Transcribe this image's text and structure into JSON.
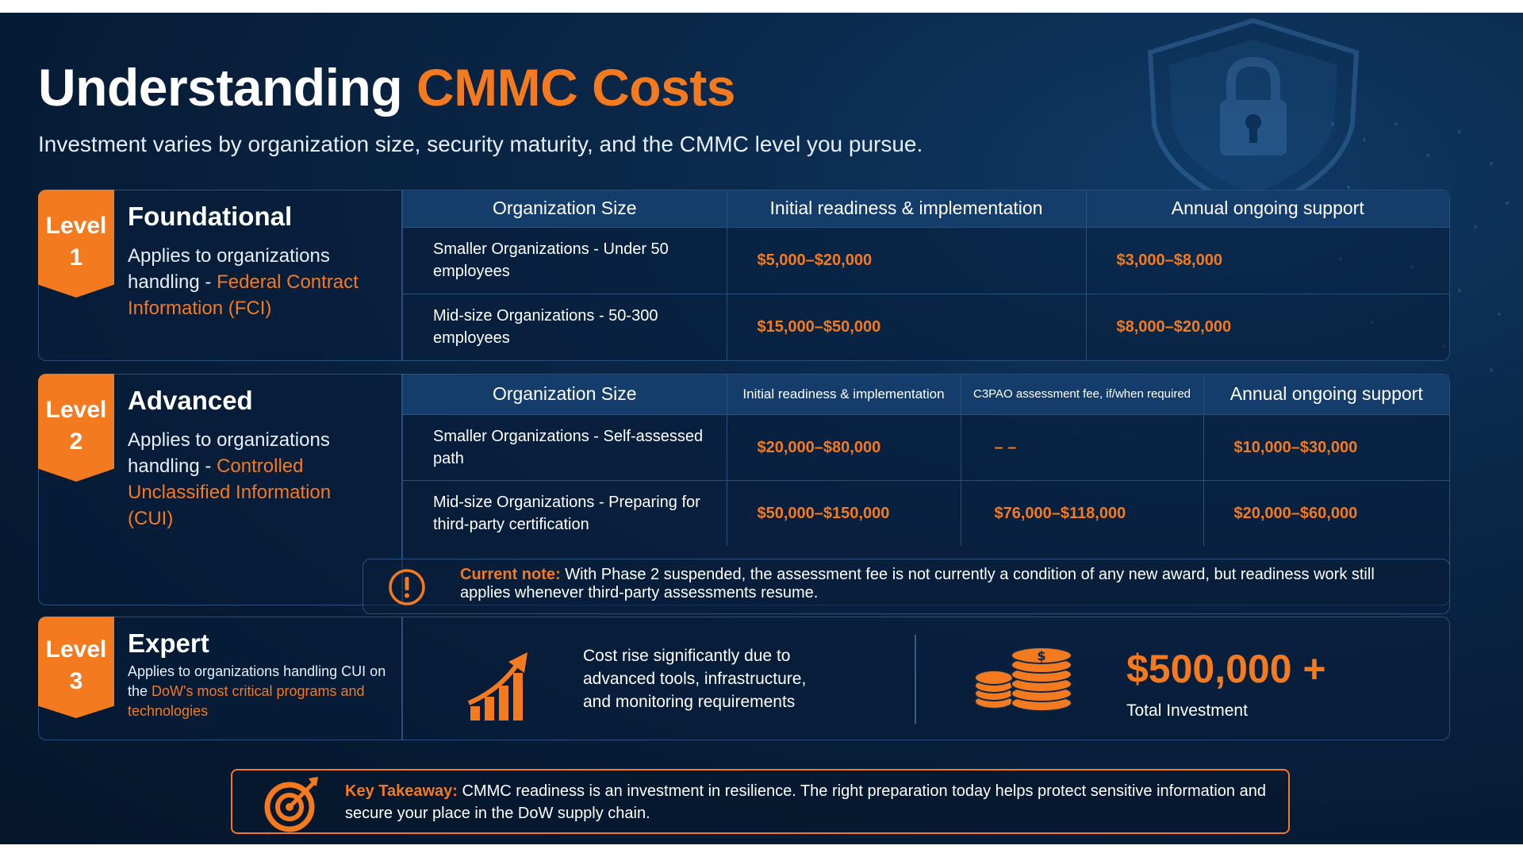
{
  "header": {
    "title_main": "Understanding ",
    "title_accent": "CMMC Costs",
    "subtitle": "Investment varies by organization size, security maturity, and the CMMC level you pursue."
  },
  "colors": {
    "accent": "#f47a20",
    "background": "#0a2748",
    "header_row": "#143d6b",
    "border": "#2b4f7a"
  },
  "level1": {
    "badge_word": "Level",
    "badge_num": "1",
    "name": "Foundational",
    "desc_prefix": "Applies to organizations handling - ",
    "desc_highlight": "Federal Contract Information (FCI)",
    "columns": [
      "Organization Size",
      "Initial readiness & implementation",
      "Annual ongoing support"
    ],
    "rows": [
      {
        "size": "Smaller Organizations - Under 50 employees",
        "initial": "$5,000–$20,000",
        "annual": "$3,000–$8,000"
      },
      {
        "size": "Mid-size Organizations - 50-300 employees",
        "initial": "$15,000–$50,000",
        "annual": "$8,000–$20,000"
      }
    ]
  },
  "level2": {
    "badge_word": "Level",
    "badge_num": "2",
    "name": "Advanced",
    "desc_prefix": "Applies to organizations handling - ",
    "desc_highlight": "Controlled Unclassified Information (CUI)",
    "columns": [
      "Organization Size",
      "Initial readiness & implementation",
      "C3PAO assessment fee, if/when required",
      "Annual ongoing support"
    ],
    "rows": [
      {
        "size": "Smaller Organizations - Self-assessed path",
        "initial": "$20,000–$80,000",
        "c3pao": "– –",
        "annual": "$10,000–$30,000"
      },
      {
        "size": "Mid-size Organizations - Preparing for third-party certification",
        "initial": "$50,000–$150,000",
        "c3pao": "$76,000–$118,000",
        "annual": "$20,000–$60,000"
      }
    ],
    "note_lead": "Current note:",
    "note_text": " With Phase 2 suspended, the assessment fee is not currently a condition of any new award, but readiness work still applies whenever third-party assessments resume."
  },
  "level3": {
    "badge_word": "Level",
    "badge_num": "3",
    "name": "Expert",
    "desc_prefix": "Applies to organizations handling CUI on the ",
    "desc_highlight": "DoW's most critical programs and technologies",
    "cost_text": "Cost rise significantly due to advanced tools, infrastructure, and monitoring requirements",
    "amount": "$500,000 +",
    "amount_label": "Total Investment"
  },
  "takeaway": {
    "lead": "Key Takeaway:",
    "text": " CMMC readiness is an investment in resilience. The right preparation today helps protect sensitive information and secure your place in the DoW supply chain."
  }
}
